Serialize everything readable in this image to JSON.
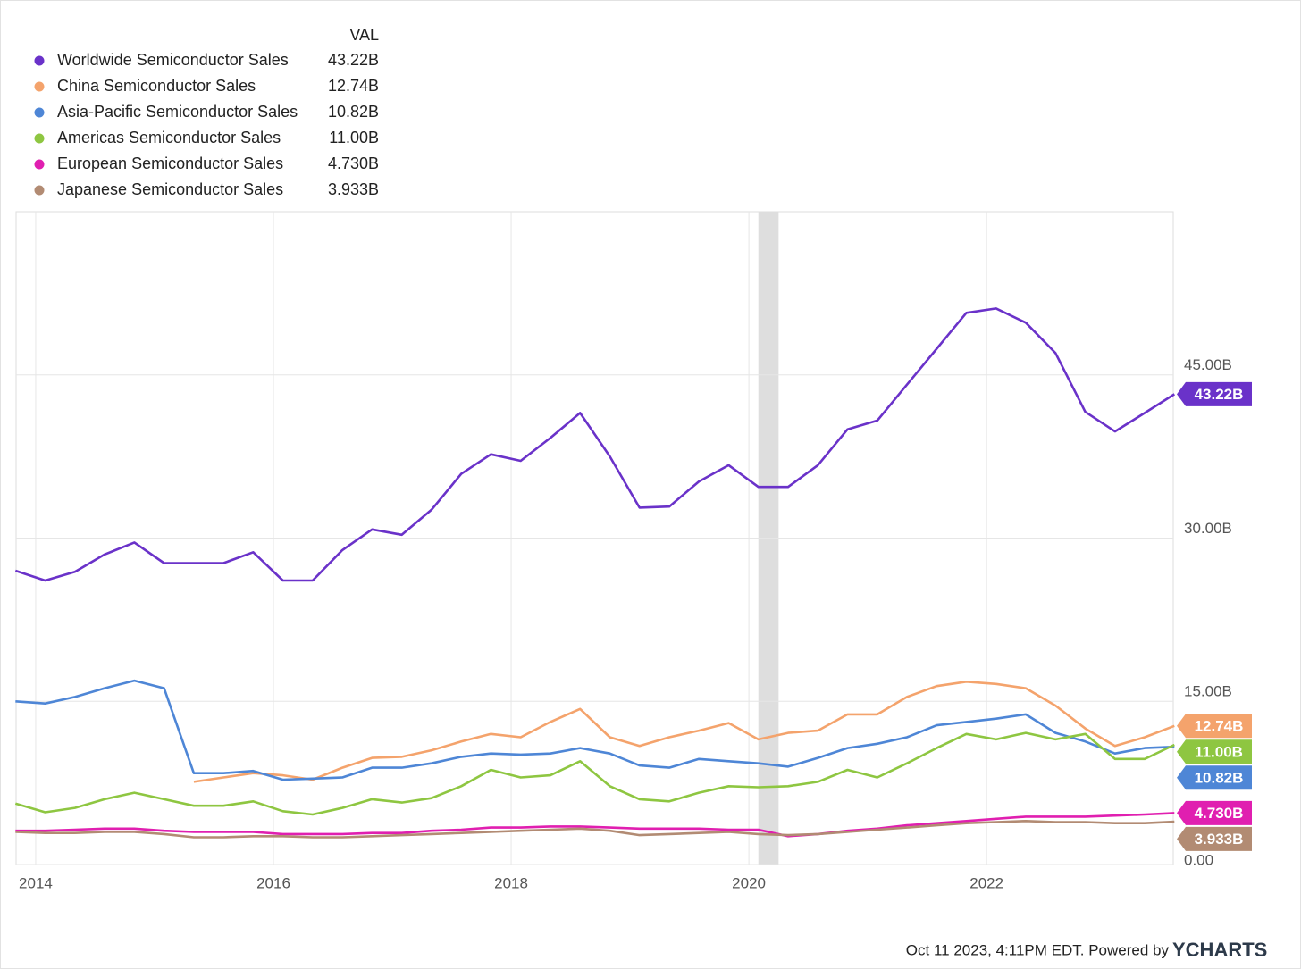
{
  "chart_data": {
    "type": "line",
    "legend_header": "VAL",
    "x": [
      2013.83,
      2014.08,
      2014.33,
      2014.58,
      2014.83,
      2015.08,
      2015.33,
      2015.58,
      2015.83,
      2016.08,
      2016.33,
      2016.58,
      2016.83,
      2017.08,
      2017.33,
      2017.58,
      2017.83,
      2018.08,
      2018.33,
      2018.58,
      2018.83,
      2019.08,
      2019.33,
      2019.58,
      2019.83,
      2020.08,
      2020.33,
      2020.58,
      2020.83,
      2021.08,
      2021.33,
      2021.58,
      2021.83,
      2022.08,
      2022.33,
      2022.58,
      2022.83,
      2023.08,
      2023.33,
      2023.58
    ],
    "xlim": [
      2013.835,
      2023.57
    ],
    "xticks": [
      2014,
      2016,
      2018,
      2020,
      2022
    ],
    "ylim": [
      0,
      60
    ],
    "yticks": [
      {
        "value": 0,
        "label": "0.00"
      },
      {
        "value": 15,
        "label": "15.00B"
      },
      {
        "value": 30,
        "label": "30.00B"
      },
      {
        "value": 45,
        "label": "45.00B"
      }
    ],
    "grid": true,
    "shading": [
      2020.08,
      2020.25
    ],
    "series": [
      {
        "name": "Worldwide Semiconductor Sales",
        "color": "#6a32c9",
        "value_label": "43.22B",
        "values": [
          27.0,
          26.1,
          26.9,
          28.5,
          29.6,
          27.7,
          27.7,
          27.7,
          28.7,
          26.1,
          26.1,
          28.9,
          30.8,
          30.3,
          32.6,
          35.9,
          37.7,
          37.1,
          39.2,
          41.5,
          37.5,
          32.8,
          32.9,
          35.2,
          36.7,
          34.7,
          34.7,
          36.7,
          40.0,
          40.8,
          44.1,
          47.4,
          50.7,
          51.1,
          49.8,
          47.0,
          41.6,
          39.8,
          41.5,
          43.22
        ]
      },
      {
        "name": "China Semiconductor Sales",
        "color": "#f4a36c",
        "value_label": "12.74B",
        "values": [
          null,
          null,
          null,
          null,
          null,
          null,
          7.6,
          8.0,
          8.4,
          8.2,
          7.8,
          8.9,
          9.8,
          9.9,
          10.5,
          11.3,
          12.0,
          11.7,
          13.1,
          14.3,
          11.7,
          10.9,
          11.7,
          12.3,
          13.0,
          11.5,
          12.1,
          12.3,
          13.8,
          13.8,
          15.4,
          16.4,
          16.8,
          16.6,
          16.2,
          14.6,
          12.5,
          10.9,
          11.7,
          12.74
        ]
      },
      {
        "name": "Asia-Pacific Semiconductor Sales",
        "color": "#4e86d6",
        "value_label": "10.82B",
        "values": [
          15.0,
          14.8,
          15.4,
          16.2,
          16.9,
          16.2,
          8.4,
          8.4,
          8.6,
          7.8,
          7.9,
          8.0,
          8.9,
          8.9,
          9.3,
          9.9,
          10.2,
          10.1,
          10.2,
          10.7,
          10.2,
          9.1,
          8.9,
          9.7,
          9.5,
          9.3,
          9.0,
          9.8,
          10.7,
          11.1,
          11.7,
          12.8,
          13.1,
          13.4,
          13.8,
          12.1,
          11.3,
          10.2,
          10.7,
          10.82
        ]
      },
      {
        "name": "Americas Semiconductor Sales",
        "color": "#8ec641",
        "value_label": "11.00B",
        "values": [
          5.6,
          4.8,
          5.2,
          6.0,
          6.6,
          6.0,
          5.4,
          5.4,
          5.8,
          4.9,
          4.6,
          5.2,
          6.0,
          5.7,
          6.1,
          7.2,
          8.7,
          8.0,
          8.2,
          9.5,
          7.2,
          6.0,
          5.8,
          6.6,
          7.2,
          7.1,
          7.2,
          7.6,
          8.7,
          8.0,
          9.3,
          10.7,
          12.0,
          11.5,
          12.1,
          11.5,
          12.0,
          9.7,
          9.7,
          11.0
        ]
      },
      {
        "name": "European Semiconductor Sales",
        "color": "#e01fb0",
        "value_label": "4.730B",
        "values": [
          3.1,
          3.1,
          3.2,
          3.3,
          3.3,
          3.1,
          3.0,
          3.0,
          3.0,
          2.8,
          2.8,
          2.8,
          2.9,
          2.9,
          3.1,
          3.2,
          3.4,
          3.4,
          3.5,
          3.5,
          3.4,
          3.3,
          3.3,
          3.3,
          3.2,
          3.2,
          2.6,
          2.8,
          3.1,
          3.3,
          3.6,
          3.8,
          4.0,
          4.2,
          4.4,
          4.4,
          4.4,
          4.5,
          4.6,
          4.73
        ]
      },
      {
        "name": "Japanese Semiconductor Sales",
        "color": "#b28b73",
        "value_label": "3.933B",
        "values": [
          3.0,
          2.9,
          2.9,
          3.0,
          3.0,
          2.8,
          2.5,
          2.5,
          2.6,
          2.6,
          2.5,
          2.5,
          2.6,
          2.7,
          2.8,
          2.9,
          3.0,
          3.1,
          3.2,
          3.3,
          3.1,
          2.7,
          2.8,
          2.9,
          3.0,
          2.8,
          2.7,
          2.8,
          3.0,
          3.2,
          3.4,
          3.6,
          3.8,
          3.9,
          4.0,
          3.9,
          3.9,
          3.8,
          3.8,
          3.933
        ]
      }
    ],
    "footer": {
      "text": "Oct 11 2023, 4:11PM EDT. Powered by",
      "logo": "YCHARTS"
    }
  }
}
